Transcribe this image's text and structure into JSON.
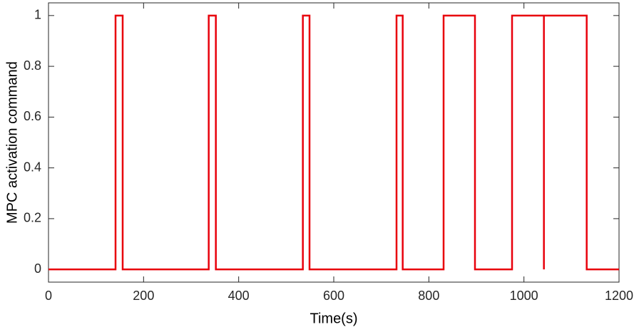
{
  "chart_data": {
    "type": "line",
    "x_label": "Time(s)",
    "y_label": "MPC activation command",
    "x": [
      0,
      141,
      141,
      156,
      156,
      337,
      337,
      352,
      352,
      535,
      535,
      549,
      549,
      732,
      732,
      745,
      745,
      831,
      831,
      897,
      897,
      975,
      975,
      1042,
      1042,
      1042,
      1132,
      1132,
      1200
    ],
    "series": [
      {
        "color": "#e8000b",
        "values": [
          0,
          0,
          1,
          1,
          0,
          0,
          1,
          1,
          0,
          0,
          1,
          1,
          0,
          0,
          1,
          1,
          0,
          0,
          1,
          1,
          0,
          0,
          1,
          1,
          0,
          1,
          1,
          0,
          0
        ]
      }
    ],
    "xlim": [
      0,
      1200
    ],
    "xticks": [
      0,
      200,
      400,
      600,
      800,
      1000,
      1200
    ],
    "ylim": [
      -0.05,
      1.05
    ],
    "yticks": [
      0,
      0.2,
      0.4,
      0.6,
      0.8,
      1
    ],
    "grid": false
  }
}
